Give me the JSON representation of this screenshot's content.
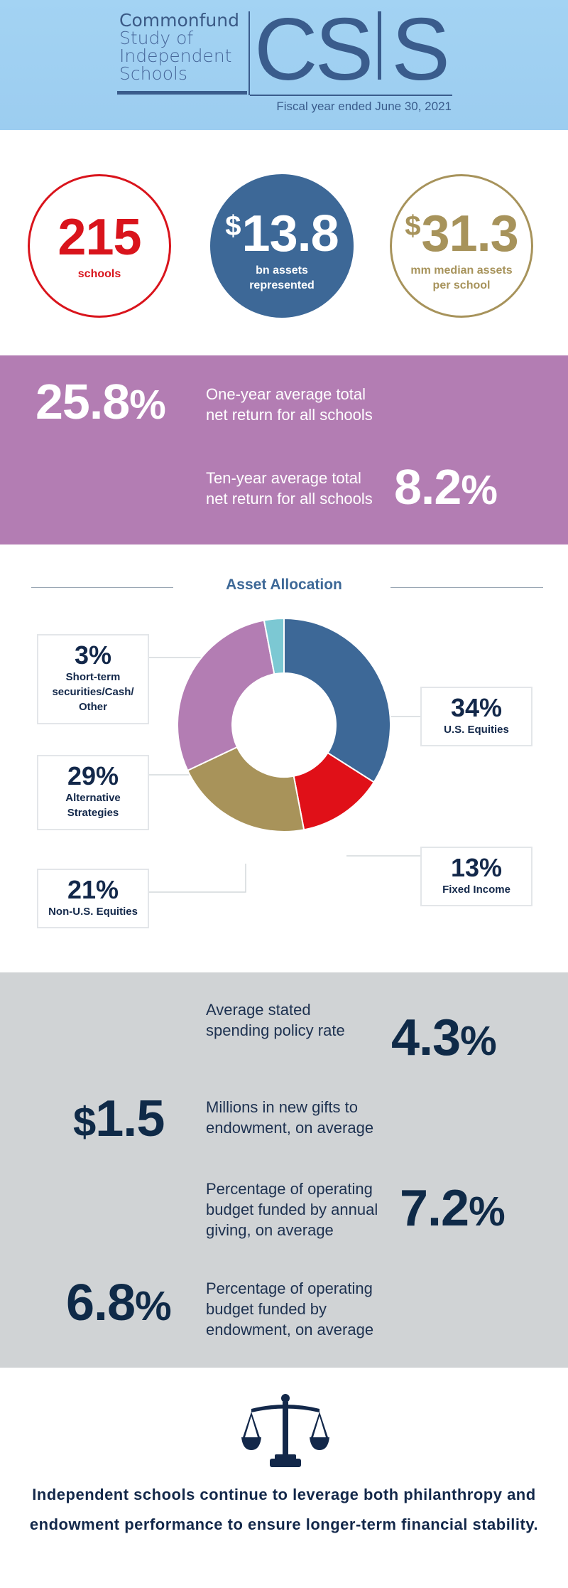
{
  "header": {
    "brand_lines": [
      "Commonfund",
      "Study of",
      "Independent",
      "Schools"
    ],
    "logo_left": "CS",
    "logo_right": "S",
    "fiscal_year": "Fiscal year ended June 30, 2021"
  },
  "stats": {
    "schools": {
      "value": "215",
      "label": "schools",
      "color": "#d9141c"
    },
    "assets": {
      "currency": "$",
      "value": "13.8",
      "label_line1": "bn assets",
      "label_line2": "represented",
      "color": "#3d6897"
    },
    "median": {
      "currency": "$",
      "value": "31.3",
      "label_line1": "mm median assets",
      "label_line2": "per school",
      "color": "#a7935b"
    }
  },
  "returns": {
    "one_year": {
      "value": "25.8",
      "unit": "%",
      "line1": "One-year average total",
      "line2": "net return for all schools"
    },
    "ten_year": {
      "value": "8.2",
      "unit": "%",
      "line1": "Ten-year average total",
      "line2": "net return for all schools"
    }
  },
  "chart_data": {
    "type": "pie",
    "title": "Asset Allocation",
    "donut": true,
    "slices": [
      {
        "label": "U.S. Equities",
        "value": 34,
        "color": "#3d6897"
      },
      {
        "label": "Fixed Income",
        "value": 13,
        "color": "#e01018"
      },
      {
        "label": "Non-U.S. Equities",
        "value": 21,
        "color": "#a8935a"
      },
      {
        "label": "Alternative Strategies",
        "value": 29,
        "color": "#b37db3"
      },
      {
        "label": "Short-term securities/Cash/ Other",
        "value": 3,
        "color": "#7cc8d3"
      }
    ],
    "labels": {
      "short": {
        "pct": "3%",
        "line1": "Short-term",
        "line2": "securities/Cash/",
        "line3": "Other"
      },
      "alt": {
        "pct": "29%",
        "line1": "Alternative",
        "line2": "Strategies"
      },
      "non_us": {
        "pct": "21%",
        "line1": "Non-U.S. Equities"
      },
      "us": {
        "pct": "34%",
        "line1": "U.S. Equities"
      },
      "fixed": {
        "pct": "13%",
        "line1": "Fixed Income"
      }
    }
  },
  "metrics": {
    "spending": {
      "value": "4.3",
      "unit": "%",
      "line1": "Average stated",
      "line2": "spending policy rate"
    },
    "gifts": {
      "currency": "$",
      "value": "1.5",
      "line1": "Millions in new gifts to",
      "line2": "endowment, on average"
    },
    "annual_giving": {
      "value": "7.2",
      "unit": "%",
      "line1": "Percentage of operating",
      "line2": "budget funded by annual",
      "line3": "giving, on average"
    },
    "endowment": {
      "value": "6.8",
      "unit": "%",
      "line1": "Percentage of operating",
      "line2": "budget funded by",
      "line3": "endowment, on average"
    }
  },
  "footer": {
    "icon": "scales-of-justice-icon",
    "closing": "Independent schools continue to leverage both philanthropy and endowment performance to ensure longer-term financial stability."
  }
}
